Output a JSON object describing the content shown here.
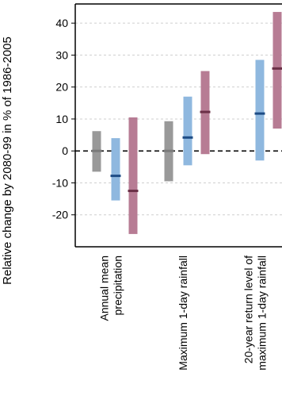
{
  "chart_data": {
    "type": "bar",
    "title": "",
    "xlabel": "",
    "ylabel": "Relative change by 2080-99 in % of 1986-2005",
    "ylim": [
      -30,
      46
    ],
    "grid": true,
    "zero_line": "dashed",
    "y_ticks": [
      40,
      30,
      20,
      10,
      0,
      -10,
      -20
    ],
    "y_tick_labels": [
      "40",
      "30",
      "20",
      "10",
      "0",
      "-10",
      "-20"
    ],
    "categories": [
      [
        "Annual mean",
        "precipitation"
      ],
      [
        "Maximum 1-day rainfall"
      ],
      [
        "20-year return level of",
        "maximum 1-day rainfall"
      ]
    ],
    "series": [
      {
        "color": "#999999",
        "median_color": "#7a7a7a",
        "low": [
          -6.5,
          -9.5,
          null
        ],
        "high": [
          6.2,
          9.3,
          null
        ],
        "median": [
          0,
          0,
          null
        ]
      },
      {
        "color": "#8fb8df",
        "median_color": "#1e4c85",
        "low": [
          -15.5,
          -4.5,
          -3
        ],
        "high": [
          4,
          17,
          28.5
        ],
        "median": [
          -7.8,
          4.2,
          11.7
        ]
      },
      {
        "color": "#b77c94",
        "median_color": "#6b3047",
        "low": [
          -26,
          -1,
          7
        ],
        "high": [
          10.5,
          25,
          43.5
        ],
        "median": [
          -12.5,
          12.2,
          25.8
        ]
      }
    ]
  }
}
